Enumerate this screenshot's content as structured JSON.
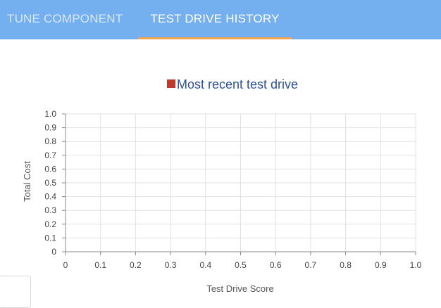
{
  "tabs": {
    "tune_component": "TUNE COMPONENT",
    "test_drive_history": "TEST DRIVE HISTORY"
  },
  "colors": {
    "topbar": "#74b0ef",
    "active_tab_indicator": "#f3a64f",
    "legend_swatch": "#c0392b",
    "legend_text": "#2d4fa0"
  },
  "chart_data": {
    "type": "scatter",
    "legend": [
      {
        "name": "Most recent test drive",
        "color": "#c0392b"
      }
    ],
    "legend_position": "top-center",
    "xlabel": "Test Drive Score",
    "ylabel": "Total Cost",
    "xlim": [
      0,
      1.0
    ],
    "ylim": [
      0,
      1.0
    ],
    "x_ticks": [
      "0",
      "0.1",
      "0.2",
      "0.3",
      "0.4",
      "0.5",
      "0.6",
      "0.7",
      "0.8",
      "0.9",
      "1.0"
    ],
    "y_ticks": [
      "0",
      "0.1",
      "0.2",
      "0.3",
      "0.4",
      "0.5",
      "0.6",
      "0.7",
      "0.8",
      "0.9",
      "1.0"
    ],
    "grid": true,
    "series": [
      {
        "name": "Most recent test drive",
        "points": []
      }
    ]
  }
}
